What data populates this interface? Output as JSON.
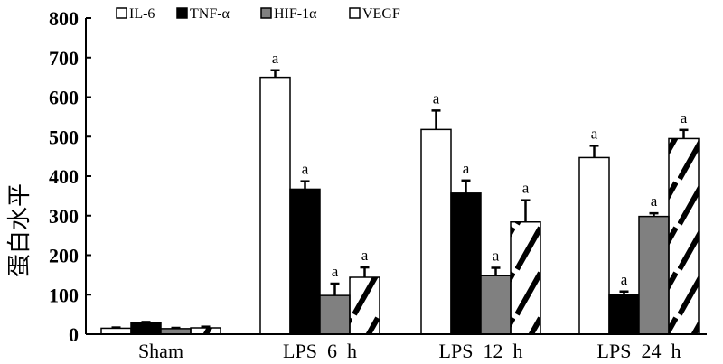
{
  "chart_data": {
    "type": "bar",
    "title": "",
    "xlabel": "",
    "ylabel": "蛋白水平",
    "ylim": [
      0,
      800
    ],
    "yticks": [
      0,
      100,
      200,
      300,
      400,
      500,
      600,
      700,
      800
    ],
    "categories": [
      "Sham",
      "LPS  6  h",
      "LPS  12  h",
      "LPS  24  h"
    ],
    "legend_position": "top",
    "series": [
      {
        "name": "IL-6",
        "color": "#ffffff",
        "pattern": "none",
        "values": [
          15,
          650,
          518,
          447
        ],
        "errors": [
          2,
          18,
          48,
          30
        ],
        "annotations": [
          "",
          "a",
          "a",
          "a"
        ]
      },
      {
        "name": "TNF-α",
        "color": "#000000",
        "pattern": "none",
        "values": [
          28,
          367,
          357,
          100
        ],
        "errors": [
          3,
          20,
          32,
          8
        ],
        "annotations": [
          "",
          "a",
          "a",
          "a"
        ]
      },
      {
        "name": "HIF-1α",
        "color": "#808080",
        "pattern": "none",
        "values": [
          14,
          98,
          148,
          298
        ],
        "errors": [
          2,
          30,
          20,
          8
        ],
        "annotations": [
          "",
          "a",
          "a",
          "a"
        ]
      },
      {
        "name": "VEGF",
        "color": "#ffffff",
        "pattern": "hatch",
        "values": [
          16,
          144,
          284,
          495
        ],
        "errors": [
          3,
          25,
          55,
          22
        ],
        "annotations": [
          "",
          "a",
          "a",
          "a"
        ]
      }
    ]
  }
}
